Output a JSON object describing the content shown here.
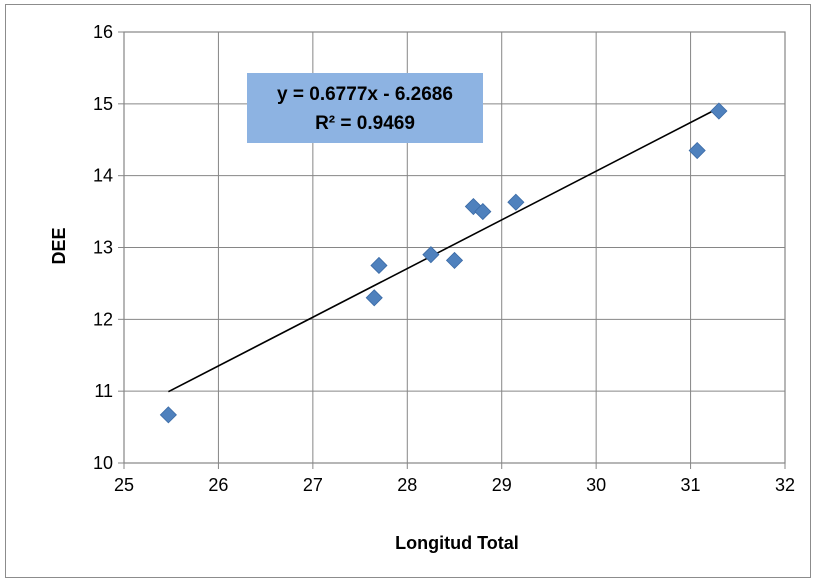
{
  "chart_data": {
    "type": "scatter",
    "title": "",
    "xlabel": "Longitud Total",
    "ylabel": "DEE",
    "xlim": [
      25,
      32
    ],
    "ylim": [
      10,
      16
    ],
    "x_ticks": [
      "25",
      "26",
      "27",
      "28",
      "29",
      "30",
      "31",
      "32"
    ],
    "y_ticks": [
      "10",
      "11",
      "12",
      "13",
      "14",
      "15",
      "16"
    ],
    "grid": true,
    "legend": "none",
    "marker": "diamond",
    "marker_color": "#4f81bd",
    "series": [
      {
        "points": [
          {
            "x": 25.47,
            "y": 10.67
          },
          {
            "x": 27.65,
            "y": 12.3
          },
          {
            "x": 27.7,
            "y": 12.75
          },
          {
            "x": 28.25,
            "y": 12.9
          },
          {
            "x": 28.5,
            "y": 12.82
          },
          {
            "x": 28.7,
            "y": 13.57
          },
          {
            "x": 28.8,
            "y": 13.5
          },
          {
            "x": 29.15,
            "y": 13.63
          },
          {
            "x": 31.07,
            "y": 14.35
          },
          {
            "x": 31.3,
            "y": 14.9
          }
        ]
      }
    ],
    "trendline": {
      "type": "linear",
      "slope": 0.6777,
      "intercept": -6.2686,
      "x_range": [
        25.47,
        31.3
      ],
      "color": "#000000",
      "equation_label": "y = 0.6777x - 6.2686",
      "r2_label": "R² = 0.9469",
      "label_box_color": "#8db3e2"
    }
  }
}
